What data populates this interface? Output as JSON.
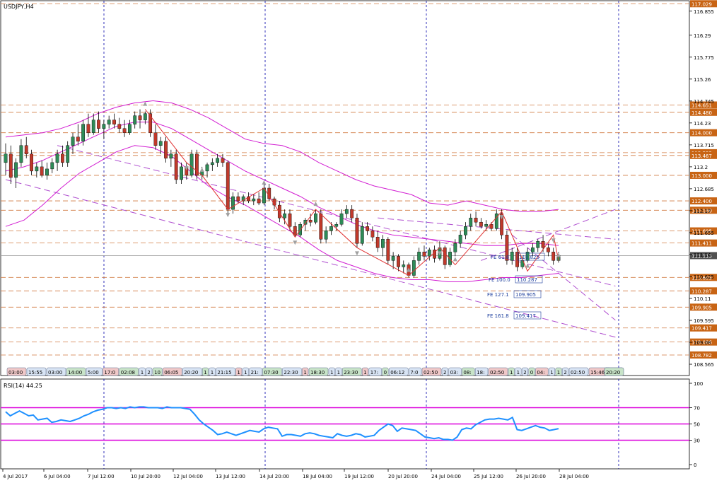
{
  "chart_data": [
    {
      "type": "candlestick",
      "title": "USDJPY,H4",
      "y_ticks": [
        116.855,
        116.29,
        115.775,
        115.26,
        114.745,
        114.23,
        113.715,
        113.2,
        112.685,
        112.17,
        111.655,
        111.14,
        110.625,
        110.11,
        109.595,
        109.08,
        108.565
      ],
      "ylim": [
        108.3,
        117.1
      ],
      "x_tick_labels": [
        "4 Jul 2017",
        "6 Jul 04:00",
        "7 Jul 12:00",
        "10 Jul 20:00",
        "12 Jul 04:00",
        "13 Jul 12:00",
        "14 Jul 20:00",
        "18 Jul 04:00",
        "19 Jul 12:00",
        "20 Jul 20:00",
        "24 Jul 04:00",
        "25 Jul 12:00",
        "26 Jul 20:00",
        "28 Jul 04:00"
      ],
      "current_price_label": "111.115",
      "horizontal_level_labels": [
        "117.029",
        "114.651",
        "114.480",
        "114.000",
        "113.532",
        "113.467",
        "113.000",
        "112.400",
        "112.180",
        "111.695",
        "111.411",
        "110.603",
        "110.287",
        "109.905",
        "109.417",
        "109.086",
        "108.782"
      ],
      "fib_extension_labels": [
        {
          "name": "FE 61.8",
          "value": "110.825"
        },
        {
          "name": "FE 100.0",
          "value": "110.287"
        },
        {
          "name": "FE 127.1",
          "value": "109.905"
        },
        {
          "name": "FE 161.8",
          "value": "109.417"
        }
      ],
      "time_labels": [
        "03:00",
        "15:55",
        "03:00",
        "14:00",
        "5:00",
        "17:0",
        "02:08",
        "1",
        "2",
        "10",
        "06:05",
        "20:20",
        "1",
        "1",
        "21:15",
        "1",
        "1",
        "21:",
        "07:30",
        "22:30",
        "1",
        "18:30",
        "1",
        "1",
        "23:30",
        "1",
        "17:",
        "0",
        "06:12",
        "7:0",
        "02:50",
        "2",
        "03:",
        "08:",
        "18:",
        "02:50",
        "1",
        "1",
        "2",
        "0",
        "04:",
        "1",
        "1",
        "2",
        "02:50",
        "15:46",
        "02:50",
        "1",
        "20:20"
      ],
      "candles": [
        {
          "o": 113.3,
          "h": 113.75,
          "l": 113.0,
          "c": 113.5
        },
        {
          "o": 113.5,
          "h": 113.7,
          "l": 112.8,
          "c": 112.95
        },
        {
          "o": 112.95,
          "h": 113.4,
          "l": 112.7,
          "c": 113.3
        },
        {
          "o": 113.3,
          "h": 113.85,
          "l": 113.2,
          "c": 113.7
        },
        {
          "o": 113.7,
          "h": 113.9,
          "l": 113.4,
          "c": 113.5
        },
        {
          "o": 113.5,
          "h": 113.6,
          "l": 113.0,
          "c": 113.1
        },
        {
          "o": 113.1,
          "h": 113.3,
          "l": 112.95,
          "c": 113.2
        },
        {
          "o": 113.2,
          "h": 113.35,
          "l": 112.95,
          "c": 113.0
        },
        {
          "o": 113.0,
          "h": 113.3,
          "l": 112.9,
          "c": 113.15
        },
        {
          "o": 113.15,
          "h": 113.4,
          "l": 113.05,
          "c": 113.3
        },
        {
          "o": 113.3,
          "h": 113.6,
          "l": 113.1,
          "c": 113.5
        },
        {
          "o": 113.5,
          "h": 113.7,
          "l": 113.2,
          "c": 113.3
        },
        {
          "o": 113.3,
          "h": 113.8,
          "l": 113.2,
          "c": 113.7
        },
        {
          "o": 113.7,
          "h": 114.0,
          "l": 113.5,
          "c": 113.9
        },
        {
          "o": 113.9,
          "h": 114.2,
          "l": 113.7,
          "c": 113.8
        },
        {
          "o": 113.8,
          "h": 114.3,
          "l": 113.7,
          "c": 114.2
        },
        {
          "o": 114.2,
          "h": 114.45,
          "l": 113.9,
          "c": 114.0
        },
        {
          "o": 114.0,
          "h": 114.45,
          "l": 113.95,
          "c": 114.3
        },
        {
          "o": 114.3,
          "h": 114.5,
          "l": 114.0,
          "c": 114.1
        },
        {
          "o": 114.1,
          "h": 114.3,
          "l": 113.85,
          "c": 114.2
        },
        {
          "o": 114.2,
          "h": 114.4,
          "l": 114.1,
          "c": 114.3
        },
        {
          "o": 114.3,
          "h": 114.45,
          "l": 114.1,
          "c": 114.2
        },
        {
          "o": 114.2,
          "h": 114.35,
          "l": 114.0,
          "c": 114.1
        },
        {
          "o": 114.1,
          "h": 114.3,
          "l": 113.9,
          "c": 114.0
        },
        {
          "o": 114.0,
          "h": 114.3,
          "l": 113.95,
          "c": 114.2
        },
        {
          "o": 114.2,
          "h": 114.5,
          "l": 114.1,
          "c": 114.4
        },
        {
          "o": 114.4,
          "h": 114.55,
          "l": 114.1,
          "c": 114.3
        },
        {
          "o": 114.3,
          "h": 114.5,
          "l": 114.2,
          "c": 114.45
        },
        {
          "o": 114.45,
          "h": 114.55,
          "l": 113.9,
          "c": 114.0
        },
        {
          "o": 114.0,
          "h": 114.2,
          "l": 113.6,
          "c": 113.7
        },
        {
          "o": 113.7,
          "h": 113.9,
          "l": 113.5,
          "c": 113.8
        },
        {
          "o": 113.8,
          "h": 113.9,
          "l": 113.3,
          "c": 113.4
        },
        {
          "o": 113.4,
          "h": 113.6,
          "l": 113.2,
          "c": 113.5
        },
        {
          "o": 113.5,
          "h": 113.6,
          "l": 112.8,
          "c": 112.9
        },
        {
          "o": 112.9,
          "h": 113.3,
          "l": 112.8,
          "c": 113.2
        },
        {
          "o": 113.2,
          "h": 113.3,
          "l": 112.9,
          "c": 113.0
        },
        {
          "o": 113.0,
          "h": 113.6,
          "l": 112.95,
          "c": 113.5
        },
        {
          "o": 113.5,
          "h": 113.6,
          "l": 112.9,
          "c": 113.0
        },
        {
          "o": 113.0,
          "h": 113.2,
          "l": 112.9,
          "c": 113.1
        },
        {
          "o": 113.1,
          "h": 113.3,
          "l": 112.95,
          "c": 113.25
        },
        {
          "o": 113.25,
          "h": 113.4,
          "l": 113.1,
          "c": 113.3
        },
        {
          "o": 113.3,
          "h": 113.5,
          "l": 113.2,
          "c": 113.4
        },
        {
          "o": 113.4,
          "h": 113.5,
          "l": 113.2,
          "c": 113.3
        },
        {
          "o": 113.3,
          "h": 113.35,
          "l": 112.1,
          "c": 112.2
        },
        {
          "o": 112.2,
          "h": 112.6,
          "l": 112.1,
          "c": 112.5
        },
        {
          "o": 112.5,
          "h": 112.6,
          "l": 112.35,
          "c": 112.4
        },
        {
          "o": 112.4,
          "h": 112.55,
          "l": 112.3,
          "c": 112.5
        },
        {
          "o": 112.5,
          "h": 112.6,
          "l": 112.35,
          "c": 112.4
        },
        {
          "o": 112.4,
          "h": 112.55,
          "l": 112.3,
          "c": 112.45
        },
        {
          "o": 112.45,
          "h": 112.6,
          "l": 112.3,
          "c": 112.35
        },
        {
          "o": 112.35,
          "h": 112.8,
          "l": 112.3,
          "c": 112.7
        },
        {
          "o": 112.7,
          "h": 112.8,
          "l": 112.4,
          "c": 112.45
        },
        {
          "o": 112.45,
          "h": 112.5,
          "l": 112.2,
          "c": 112.3
        },
        {
          "o": 112.3,
          "h": 112.4,
          "l": 111.9,
          "c": 112.0
        },
        {
          "o": 112.0,
          "h": 112.2,
          "l": 111.85,
          "c": 112.1
        },
        {
          "o": 112.1,
          "h": 112.2,
          "l": 111.7,
          "c": 111.8
        },
        {
          "o": 111.8,
          "h": 111.9,
          "l": 111.55,
          "c": 111.6
        },
        {
          "o": 111.6,
          "h": 111.9,
          "l": 111.55,
          "c": 111.85
        },
        {
          "o": 111.85,
          "h": 112.0,
          "l": 111.7,
          "c": 111.95
        },
        {
          "o": 111.95,
          "h": 112.1,
          "l": 111.8,
          "c": 111.9
        },
        {
          "o": 111.9,
          "h": 112.2,
          "l": 111.85,
          "c": 112.1
        },
        {
          "o": 112.1,
          "h": 112.2,
          "l": 111.4,
          "c": 111.5
        },
        {
          "o": 111.5,
          "h": 111.8,
          "l": 111.4,
          "c": 111.7
        },
        {
          "o": 111.7,
          "h": 111.9,
          "l": 111.6,
          "c": 111.8
        },
        {
          "o": 111.8,
          "h": 111.9,
          "l": 111.7,
          "c": 111.85
        },
        {
          "o": 111.85,
          "h": 112.2,
          "l": 111.8,
          "c": 112.1
        },
        {
          "o": 112.1,
          "h": 112.3,
          "l": 112.0,
          "c": 112.2
        },
        {
          "o": 112.2,
          "h": 112.3,
          "l": 111.9,
          "c": 112.0
        },
        {
          "o": 112.0,
          "h": 112.1,
          "l": 111.3,
          "c": 111.4
        },
        {
          "o": 111.4,
          "h": 111.9,
          "l": 111.35,
          "c": 111.8
        },
        {
          "o": 111.8,
          "h": 111.9,
          "l": 111.6,
          "c": 111.7
        },
        {
          "o": 111.7,
          "h": 111.8,
          "l": 111.45,
          "c": 111.55
        },
        {
          "o": 111.55,
          "h": 111.7,
          "l": 111.2,
          "c": 111.3
        },
        {
          "o": 111.3,
          "h": 111.6,
          "l": 111.1,
          "c": 111.5
        },
        {
          "o": 111.5,
          "h": 111.55,
          "l": 110.9,
          "c": 111.0
        },
        {
          "o": 111.0,
          "h": 111.2,
          "l": 110.8,
          "c": 111.1
        },
        {
          "o": 111.1,
          "h": 111.15,
          "l": 110.75,
          "c": 110.85
        },
        {
          "o": 110.85,
          "h": 111.0,
          "l": 110.7,
          "c": 110.9
        },
        {
          "o": 110.9,
          "h": 110.95,
          "l": 110.6,
          "c": 110.65
        },
        {
          "o": 110.65,
          "h": 111.1,
          "l": 110.6,
          "c": 111.0
        },
        {
          "o": 111.0,
          "h": 111.3,
          "l": 110.9,
          "c": 111.2
        },
        {
          "o": 111.2,
          "h": 111.35,
          "l": 111.0,
          "c": 111.1
        },
        {
          "o": 111.1,
          "h": 111.3,
          "l": 111.0,
          "c": 111.25
        },
        {
          "o": 111.25,
          "h": 111.35,
          "l": 110.95,
          "c": 111.05
        },
        {
          "o": 111.05,
          "h": 111.45,
          "l": 111.0,
          "c": 111.3
        },
        {
          "o": 111.3,
          "h": 111.35,
          "l": 110.8,
          "c": 110.9
        },
        {
          "o": 110.9,
          "h": 111.3,
          "l": 110.85,
          "c": 111.2
        },
        {
          "o": 111.2,
          "h": 111.5,
          "l": 111.1,
          "c": 111.4
        },
        {
          "o": 111.4,
          "h": 111.7,
          "l": 111.3,
          "c": 111.6
        },
        {
          "o": 111.6,
          "h": 111.9,
          "l": 111.5,
          "c": 111.8
        },
        {
          "o": 111.8,
          "h": 112.1,
          "l": 111.7,
          "c": 112.0
        },
        {
          "o": 112.0,
          "h": 112.15,
          "l": 111.8,
          "c": 111.9
        },
        {
          "o": 111.9,
          "h": 112.0,
          "l": 111.75,
          "c": 111.8
        },
        {
          "o": 111.8,
          "h": 111.95,
          "l": 111.7,
          "c": 111.85
        },
        {
          "o": 111.85,
          "h": 111.9,
          "l": 111.7,
          "c": 111.75
        },
        {
          "o": 111.75,
          "h": 112.2,
          "l": 111.7,
          "c": 112.1
        },
        {
          "o": 112.1,
          "h": 112.2,
          "l": 111.5,
          "c": 111.6
        },
        {
          "o": 111.6,
          "h": 111.7,
          "l": 110.9,
          "c": 111.0
        },
        {
          "o": 111.0,
          "h": 111.3,
          "l": 110.9,
          "c": 111.2
        },
        {
          "o": 111.2,
          "h": 111.3,
          "l": 110.75,
          "c": 110.85
        },
        {
          "o": 110.85,
          "h": 111.1,
          "l": 110.8,
          "c": 111.0
        },
        {
          "o": 111.0,
          "h": 111.3,
          "l": 110.95,
          "c": 111.2
        },
        {
          "o": 111.2,
          "h": 111.4,
          "l": 111.1,
          "c": 111.3
        },
        {
          "o": 111.3,
          "h": 111.5,
          "l": 111.2,
          "c": 111.45
        },
        {
          "o": 111.45,
          "h": 111.6,
          "l": 111.2,
          "c": 111.3
        },
        {
          "o": 111.3,
          "h": 111.4,
          "l": 111.1,
          "c": 111.2
        },
        {
          "o": 111.2,
          "h": 111.3,
          "l": 110.9,
          "c": 111.0
        },
        {
          "o": 111.0,
          "h": 111.2,
          "l": 110.95,
          "c": 111.12
        }
      ],
      "bollinger_upper": [
        113.9,
        113.95,
        114.0,
        114.1,
        114.25,
        114.45,
        114.6,
        114.7,
        114.75,
        114.7,
        114.55,
        114.35,
        114.1,
        113.85,
        113.75,
        113.7,
        113.55,
        113.3,
        113.1,
        112.9,
        112.75,
        112.65,
        112.55,
        112.35,
        112.3,
        112.4,
        112.3,
        112.2,
        112.15,
        112.15,
        112.2
      ],
      "bollinger_mid": [
        113.1,
        113.2,
        113.35,
        113.55,
        113.75,
        113.95,
        114.15,
        114.25,
        114.25,
        114.1,
        113.85,
        113.6,
        113.35,
        113.1,
        112.9,
        112.7,
        112.5,
        112.25,
        112.05,
        111.85,
        111.7,
        111.6,
        111.55,
        111.5,
        111.45,
        111.4,
        111.35,
        111.35,
        111.4,
        111.4,
        111.35
      ],
      "bollinger_lower": [
        111.8,
        111.95,
        112.3,
        112.7,
        113.05,
        113.3,
        113.55,
        113.7,
        113.65,
        113.45,
        113.1,
        112.75,
        112.5,
        112.3,
        112.05,
        111.8,
        111.55,
        111.25,
        111.0,
        110.85,
        110.7,
        110.6,
        110.55,
        110.55,
        110.5,
        110.5,
        110.55,
        110.6,
        110.6,
        110.65,
        110.7
      ],
      "zigzag": [
        114.55,
        113.3,
        113.0,
        112.2,
        112.7,
        111.55,
        112.2,
        111.3,
        110.65,
        111.3,
        110.9,
        112.15,
        110.75,
        111.6,
        111.0
      ]
    },
    {
      "type": "line",
      "title": "RSI(14) 44.25",
      "y_ticks": [
        100.0,
        70.0,
        50.0,
        30.0,
        0.0
      ],
      "ylim": [
        0,
        100
      ],
      "levels": [
        70,
        50,
        30
      ],
      "series": [
        {
          "values": [
            65,
            60,
            63,
            66,
            63,
            60,
            61,
            55,
            56,
            57,
            52,
            53,
            55,
            54,
            53,
            55,
            57,
            60,
            62,
            65,
            67,
            68,
            70,
            70,
            69,
            70,
            69,
            71,
            70,
            71,
            71,
            70,
            70,
            70,
            69,
            71,
            70,
            70,
            70,
            69,
            68,
            62,
            55,
            50,
            46,
            42,
            37,
            38,
            40,
            38,
            36,
            38,
            40,
            42,
            41,
            40,
            44,
            46,
            45,
            44,
            35,
            37,
            37,
            36,
            35,
            38,
            39,
            38,
            36,
            35,
            34,
            33,
            38,
            36,
            35,
            36,
            38,
            37,
            34,
            35,
            36,
            42,
            46,
            50,
            48,
            41,
            45,
            44,
            43,
            42,
            38,
            34,
            33,
            32,
            33,
            31,
            31,
            30,
            34,
            43,
            45,
            44,
            49,
            52,
            55,
            56,
            56,
            57,
            56,
            55,
            58,
            43,
            42,
            44,
            46,
            48,
            46,
            45,
            42,
            43,
            44.25
          ]
        }
      ]
    }
  ],
  "colors": {
    "background": "#ffffff",
    "grid_vertical": "#0000aa",
    "level_line": "#d07a40",
    "level_label_bg": "#c86414",
    "bollinger": "#d21ed2",
    "zigzag": "#e03030",
    "channel": "#b050d0",
    "rsi_line": "#1e90ff",
    "rsi_level": "#dc00dc",
    "candle_body_bull": "#2e8b57",
    "candle_body_bear": "#c0392b",
    "current_price_line": "#a0a0a0",
    "fractal_marker": "#a0a0a0"
  }
}
